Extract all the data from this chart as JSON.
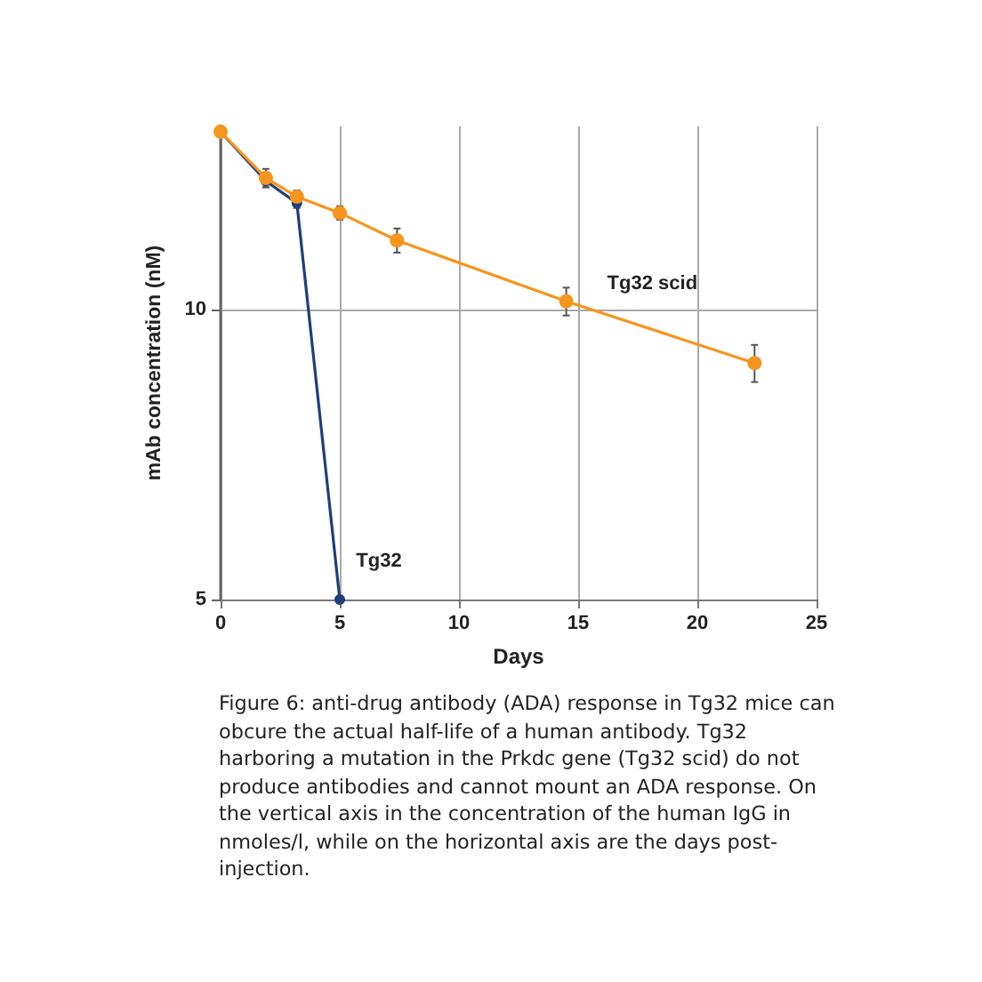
{
  "chart_data": {
    "type": "line",
    "xlabel": "Days",
    "ylabel": "mAb concentration (nM)",
    "annotations": [
      "Figure 6: anti-drug antibody (ADA) response in Tg32 mice can obcure the actual half-life of a human antibody. Tg32 harboring a mutation in the Prkdc gene (Tg32 scid) do not produce antibodies and cannot mount an ADA response. On the vertical axis in the concentration of the human IgG in nmoles/l, while on the horizontal axis are the days post-injection."
    ],
    "series": [
      {
        "name": "Tg32 scid",
        "color": "#f7941d",
        "x": [
          0,
          1.9,
          3.2,
          5,
          7.4,
          14.5,
          22.4
        ],
        "values": [
          15.3,
          13.7,
          13.1,
          12.6,
          11.8,
          10.2,
          8.8
        ],
        "errors": [
          null,
          0.3,
          0.2,
          0.2,
          0.34,
          0.34,
          0.39
        ]
      },
      {
        "name": "Tg32",
        "color": "#1f3f7a",
        "x": [
          0,
          1.9,
          3.2,
          5
        ],
        "values": [
          15.3,
          13.6,
          12.9,
          5
        ],
        "errors": [
          null,
          0.2,
          0.15,
          null
        ]
      }
    ],
    "xlim": [
      0,
      25
    ],
    "xticks": [
      0,
      5,
      10,
      15,
      20,
      25
    ],
    "ylim": [
      5,
      15.5
    ],
    "yticks": [
      5,
      10
    ],
    "log": "y",
    "grid": true,
    "marker": "circle",
    "line_style": "solid",
    "legend": false
  }
}
